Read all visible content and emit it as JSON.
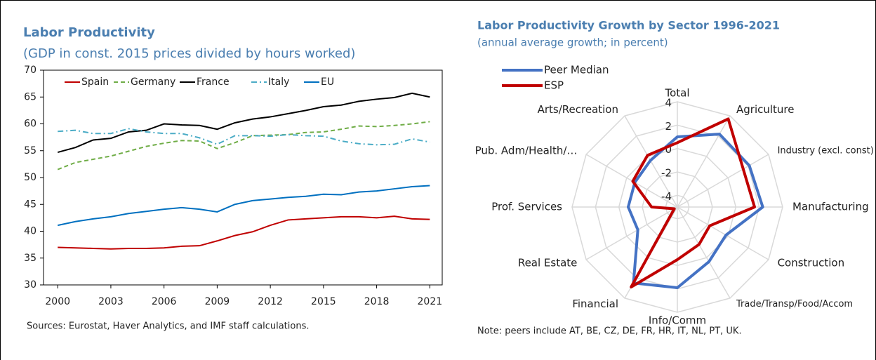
{
  "chart_data": [
    {
      "type": "line",
      "title": "Labor Productivity",
      "subtitle": "(GDP in const. 2015 prices divided by hours worked)",
      "source": "Sources: Eurostat, Haver Analytics, and IMF staff calculations.",
      "x": [
        2000,
        2001,
        2002,
        2003,
        2004,
        2005,
        2006,
        2007,
        2008,
        2009,
        2010,
        2011,
        2012,
        2013,
        2014,
        2015,
        2016,
        2017,
        2018,
        2019,
        2020,
        2021
      ],
      "xlim": [
        1999.2,
        2021.7
      ],
      "xticks": [
        2000,
        2003,
        2006,
        2009,
        2012,
        2015,
        2018,
        2021
      ],
      "ylim": [
        30,
        70
      ],
      "yticks": [
        30,
        35,
        40,
        45,
        50,
        55,
        60,
        65,
        70
      ],
      "legend": "top",
      "series": [
        {
          "name": "Spain",
          "color": "#c00000",
          "dash": "solid",
          "values": [
            37.0,
            36.9,
            36.8,
            36.7,
            36.8,
            36.8,
            36.9,
            37.2,
            37.3,
            38.2,
            39.2,
            39.9,
            41.1,
            42.1,
            42.3,
            42.5,
            42.7,
            42.7,
            42.5,
            42.8,
            42.3,
            42.2
          ]
        },
        {
          "name": "Germany",
          "color": "#70ad47",
          "dash": "dashed",
          "values": [
            51.5,
            52.8,
            53.4,
            54.0,
            54.9,
            55.8,
            56.4,
            56.9,
            56.8,
            55.4,
            56.5,
            57.8,
            57.9,
            58.0,
            58.4,
            58.5,
            59.0,
            59.6,
            59.5,
            59.7,
            60.0,
            60.4
          ]
        },
        {
          "name": "France",
          "color": "#000000",
          "dash": "solid",
          "values": [
            54.7,
            55.6,
            57.0,
            57.3,
            58.5,
            58.8,
            60.0,
            59.8,
            59.7,
            59.0,
            60.2,
            60.9,
            61.3,
            61.9,
            62.5,
            63.2,
            63.5,
            64.2,
            64.6,
            64.9,
            65.7,
            65.0
          ]
        },
        {
          "name": "Italy",
          "color": "#4bacc6",
          "dash": "dashdot",
          "values": [
            58.6,
            58.8,
            58.2,
            58.2,
            59.1,
            58.5,
            58.2,
            58.2,
            57.4,
            56.2,
            57.8,
            57.8,
            57.7,
            58.0,
            57.8,
            57.7,
            56.8,
            56.3,
            56.1,
            56.2,
            57.2,
            56.6
          ]
        },
        {
          "name": "EU",
          "color": "#0070c0",
          "dash": "solid",
          "values": [
            41.1,
            41.8,
            42.3,
            42.7,
            43.3,
            43.7,
            44.1,
            44.4,
            44.1,
            43.6,
            45.0,
            45.7,
            46.0,
            46.3,
            46.5,
            46.9,
            46.8,
            47.3,
            47.5,
            47.9,
            48.3,
            48.5
          ]
        }
      ]
    },
    {
      "type": "radar",
      "title": "Labor Productivity Growth by Sector 1996-2021",
      "subtitle": "(annual average growth; in percent)",
      "note": "Note: peers include AT, BE, CZ, DE, FR, HR, IT, NL, PT, UK.",
      "categories": [
        "Total",
        "Agriculture",
        "Industry (excl. const)",
        "Manufacturing",
        "Construction",
        "Trade/Transp/Food/Accom",
        "Info/Comm",
        "Financial",
        "Real Estate",
        "Prof. Services",
        "Pub. Adm/Health/…",
        "Arts/Recreation"
      ],
      "rlim": [
        -5,
        4
      ],
      "rticks": [
        -4,
        -2,
        0,
        2,
        4
      ],
      "legend": "top-left",
      "series": [
        {
          "name": "Peer Median",
          "color": "#4472c4",
          "values": [
            1.0,
            2.2,
            2.1,
            2.3,
            -0.2,
            0.4,
            1.9,
            2.5,
            -1.1,
            -0.8,
            -0.8,
            -0.4
          ]
        },
        {
          "name": "ESP",
          "color": "#c00000",
          "values": [
            0.5,
            3.7,
            1.5,
            1.6,
            -1.8,
            -1.3,
            -0.5,
            2.9,
            -4.7,
            -2.8,
            -0.6,
            0.1
          ]
        }
      ]
    }
  ]
}
